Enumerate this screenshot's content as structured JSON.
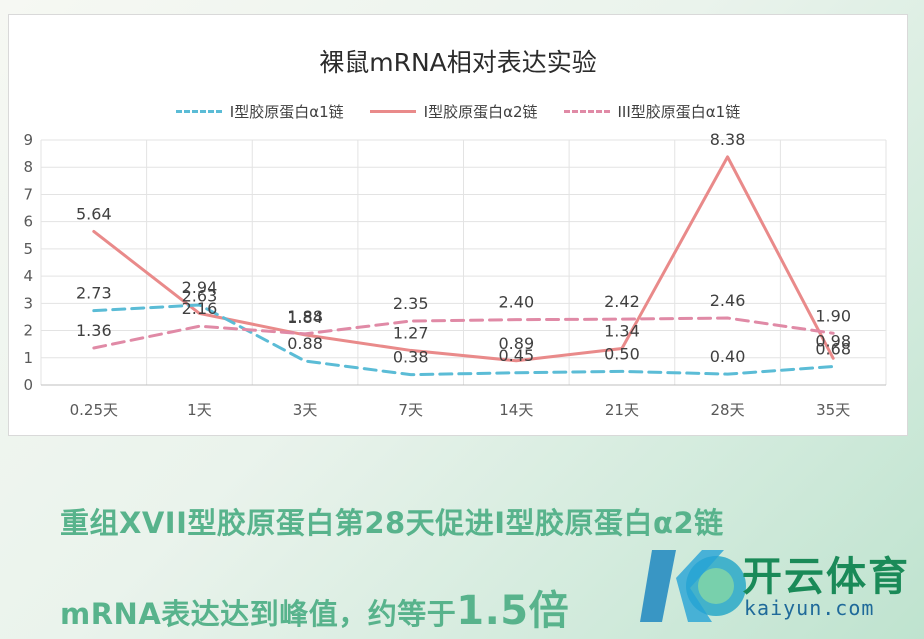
{
  "chart_data": {
    "type": "line",
    "title": "裸鼠mRNA相对表达实验",
    "categories": [
      "0.25天",
      "1天",
      "3天",
      "7天",
      "14天",
      "21天",
      "28天",
      "35天"
    ],
    "ylim": [
      0,
      9
    ],
    "yticks": [
      "0",
      "1",
      "2",
      "3",
      "4",
      "5",
      "6",
      "7",
      "8",
      "9"
    ],
    "grid": true,
    "legend_position": "top",
    "series": [
      {
        "name": "I型胶原蛋白α1链",
        "values": [
          2.73,
          2.94,
          0.88,
          0.38,
          0.45,
          0.5,
          0.4,
          0.68
        ],
        "labels": [
          "2.73",
          "2.94",
          "0.88",
          "0.38",
          "0.45",
          "0.50",
          "0.40",
          "0.68"
        ],
        "color": "#5bbcd6",
        "style": "dashed"
      },
      {
        "name": "I型胶原蛋白α2链",
        "values": [
          5.64,
          2.63,
          1.84,
          1.27,
          0.89,
          1.34,
          8.38,
          0.98
        ],
        "labels": [
          "5.64",
          "2.63",
          "1.84",
          "1.27",
          "0.89",
          "1.34",
          "8.38",
          "0.98"
        ],
        "color": "#e98a8a",
        "style": "solid"
      },
      {
        "name": "III型胶原蛋白α1链",
        "values": [
          1.36,
          2.16,
          1.88,
          2.35,
          2.4,
          2.42,
          2.46,
          1.9
        ],
        "labels": [
          "1.36",
          "2.16",
          "1.88",
          "2.35",
          "2.40",
          "2.42",
          "2.46",
          "1.90"
        ],
        "color": "#e08aa6",
        "style": "dashed"
      }
    ]
  },
  "caption": {
    "line1": "重组XVII型胶原蛋白第28天促进I型胶原蛋白α2链",
    "line2_prefix": "mRNA表达达到峰值，约等于",
    "line2_big": "1.5倍"
  },
  "watermark": {
    "text": "开云体育",
    "subtext": "kaiyun.com"
  }
}
